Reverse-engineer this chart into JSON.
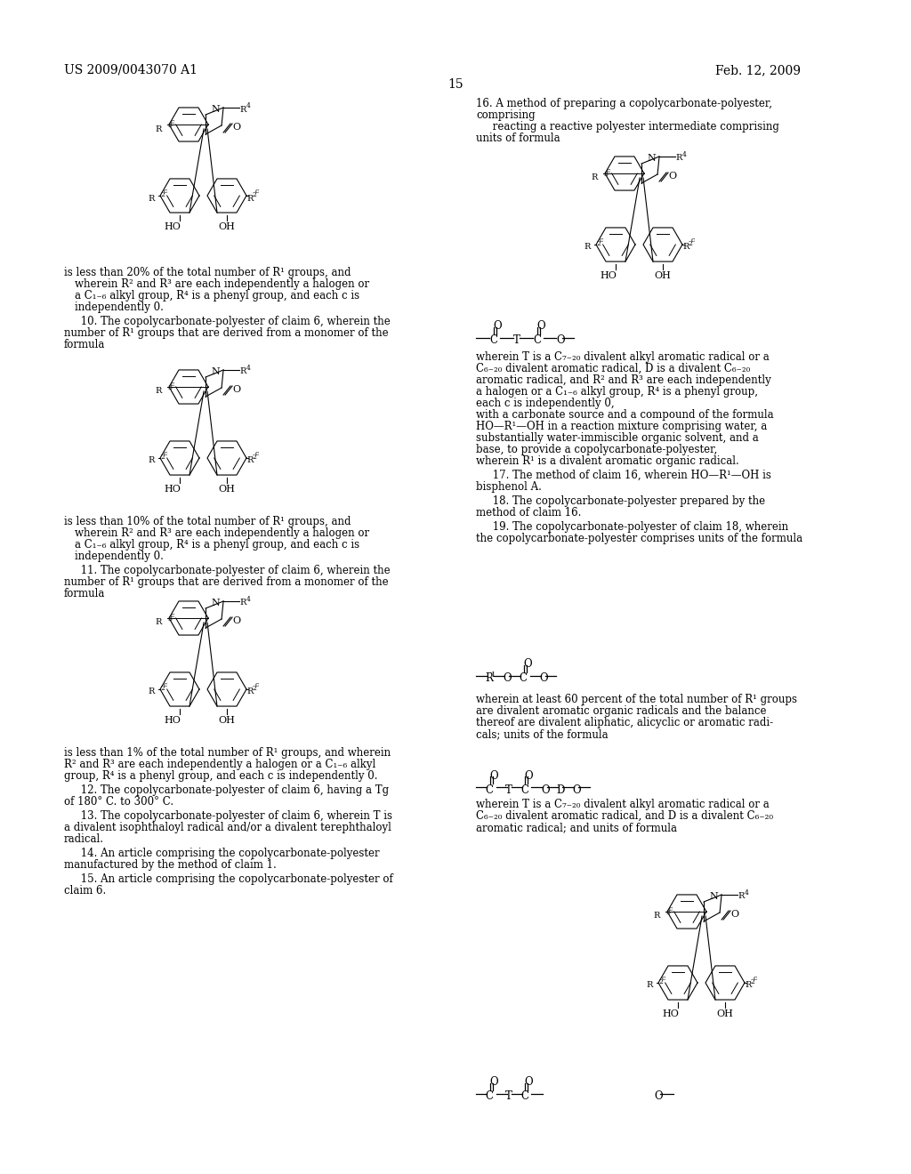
{
  "page_number": "15",
  "patent_number": "US 2009/0043070 A1",
  "patent_date": "Feb. 12, 2009",
  "background_color": "#ffffff",
  "text_color": "#000000",
  "font_size_header": 11,
  "font_size_body": 8.5,
  "font_size_claim_num": 8.5
}
